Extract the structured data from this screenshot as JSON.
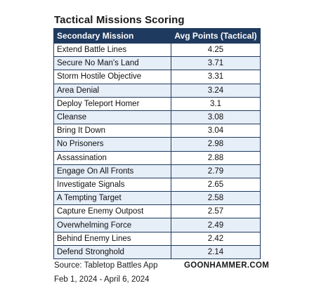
{
  "chart_data": {
    "type": "table",
    "title": "Tactical Missions Scoring",
    "columns": [
      "Secondary Mission",
      "Avg Points (Tactical)"
    ],
    "rows": [
      {
        "mission": "Extend Battle Lines",
        "points": "4.25"
      },
      {
        "mission": "Secure No Man's Land",
        "points": "3.71"
      },
      {
        "mission": "Storm Hostile Objective",
        "points": "3.31"
      },
      {
        "mission": "Area Denial",
        "points": "3.24"
      },
      {
        "mission": "Deploy Teleport Homer",
        "points": "3.1"
      },
      {
        "mission": "Cleanse",
        "points": "3.08"
      },
      {
        "mission": "Bring It Down",
        "points": "3.04"
      },
      {
        "mission": "No Prisoners",
        "points": "2.98"
      },
      {
        "mission": "Assassination",
        "points": "2.88"
      },
      {
        "mission": "Engage On All Fronts",
        "points": "2.79"
      },
      {
        "mission": "Investigate Signals",
        "points": "2.65"
      },
      {
        "mission": "A Tempting Target",
        "points": "2.58"
      },
      {
        "mission": "Capture Enemy Outpost",
        "points": "2.57"
      },
      {
        "mission": "Overwhelming Force",
        "points": "2.49"
      },
      {
        "mission": "Behind Enemy Lines",
        "points": "2.42"
      },
      {
        "mission": "Defend Stronghold",
        "points": "2.14"
      }
    ]
  },
  "footer": {
    "source": "Source: Tabletop Battles App",
    "dates": "Feb 1, 2024 - April 6, 2024",
    "brand": "GOONHAMMER.COM"
  },
  "colors": {
    "header_bg": "#1f3a5f",
    "header_text": "#ffffff",
    "zebra_bg": "#e6eef8",
    "border": "#1f3a5f"
  }
}
